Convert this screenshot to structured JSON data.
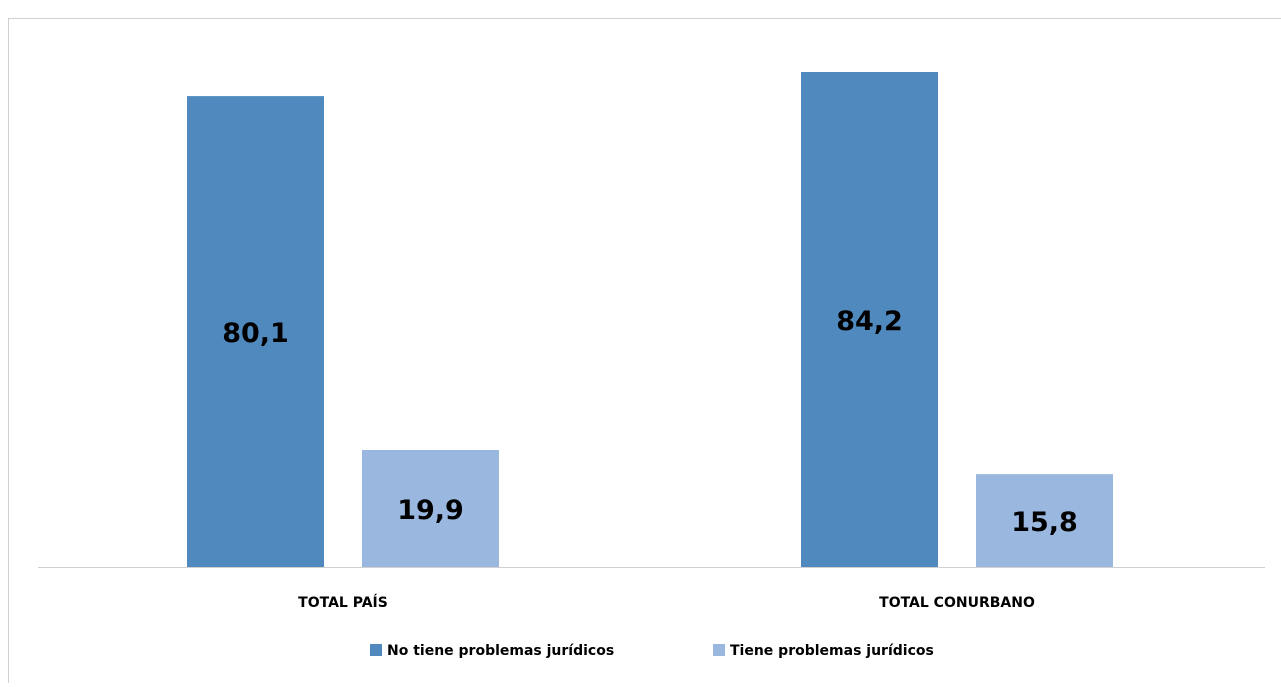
{
  "chart_data": {
    "type": "bar",
    "categories": [
      "TOTAL PAÍS",
      "TOTAL CONURBANO"
    ],
    "series": [
      {
        "name": "No tiene problemas jurídicos",
        "color": "#4f89bd",
        "values": [
          80.1,
          84.2
        ],
        "value_labels": [
          "80,1",
          "84,2"
        ]
      },
      {
        "name": "Tiene problemas jurídicos",
        "color": "#9ab8df",
        "values": [
          19.9,
          15.8
        ],
        "value_labels": [
          "19,9",
          "15,8"
        ]
      }
    ],
    "legend": "bottom"
  }
}
